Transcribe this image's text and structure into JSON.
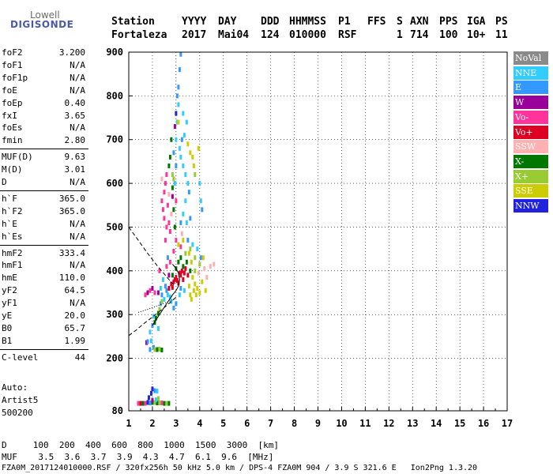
{
  "logo": {
    "line1": "Lowell",
    "line2": "DIGISONDE"
  },
  "header": {
    "labels": {
      "station": "Station",
      "yyyy": "YYYY",
      "day": "DAY",
      "ddd": "DDD",
      "hhmmss": "HHMMSS",
      "p1": "P1",
      "ffs": "FFS",
      "s": "S",
      "axn": "AXN",
      "pps": "PPS",
      "iga": "IGA",
      "ps": "PS"
    },
    "values": {
      "station": "Fortaleza",
      "yyyy": "2017",
      "day": "Mai04",
      "ddd": "124",
      "hhmmss": "010000",
      "p1": "RSF",
      "ffs": "",
      "s": "1",
      "axn": "714",
      "pps": "100",
      "iga": "10+",
      "ps": "11"
    }
  },
  "params": [
    [
      {
        "name": "foF2",
        "value": "3.200"
      },
      {
        "name": "foF1",
        "value": "N/A"
      },
      {
        "name": "foF1p",
        "value": "N/A"
      },
      {
        "name": "foE",
        "value": "N/A"
      },
      {
        "name": "foEp",
        "value": "0.40"
      },
      {
        "name": "fxI",
        "value": "3.65"
      },
      {
        "name": "foEs",
        "value": "N/A"
      },
      {
        "name": "fmin",
        "value": "2.80"
      }
    ],
    [
      {
        "name": "MUF(D)",
        "value": "9.63"
      },
      {
        "name": "M(D)",
        "value": "3.01"
      },
      {
        "name": "D",
        "value": "N/A"
      }
    ],
    [
      {
        "name": "h`F",
        "value": "365.0"
      },
      {
        "name": "h`F2",
        "value": "365.0"
      },
      {
        "name": "h`E",
        "value": "N/A"
      },
      {
        "name": "h`Es",
        "value": "N/A"
      }
    ],
    [
      {
        "name": "hmF2",
        "value": "333.4"
      },
      {
        "name": "hmF1",
        "value": "N/A"
      },
      {
        "name": "hmE",
        "value": "110.0"
      },
      {
        "name": "yF2",
        "value": "64.5"
      },
      {
        "name": "yF1",
        "value": "N/A"
      },
      {
        "name": "yE",
        "value": "20.0"
      },
      {
        "name": "B0",
        "value": "65.7"
      },
      {
        "name": "B1",
        "value": "1.99"
      }
    ],
    [
      {
        "name": "C-level",
        "value": "44"
      }
    ]
  ],
  "auto": {
    "line1": "Auto:",
    "line2": "Artist5",
    "line3": "500200"
  },
  "legend": [
    {
      "label": "NoVal",
      "color": "#8a8a8a"
    },
    {
      "label": "NNE",
      "color": "#33ccff"
    },
    {
      "label": "E",
      "color": "#3399ff"
    },
    {
      "label": "W",
      "color": "#990099"
    },
    {
      "label": "Vo-",
      "color": "#ff3399"
    },
    {
      "label": "Vo+",
      "color": "#dd0022"
    },
    {
      "label": "SSW",
      "color": "#ffb0b0"
    },
    {
      "label": "X-",
      "color": "#007700"
    },
    {
      "label": "X+",
      "color": "#99cc33"
    },
    {
      "label": "SSE",
      "color": "#cccc00"
    },
    {
      "label": "NNW",
      "color": "#2222dd"
    }
  ],
  "footer": {
    "d_row": "D     100  200  400  600  800  1000  1500  3000  [km]",
    "muf_row": "MUF    3.5  3.6  3.7  3.9  4.3  4.7  6.1  9.6  [MHz]",
    "info_row": "FZA0M_2017124010000.RSF / 320fx256h 50 kHz 5.0 km / DPS-4 FZA0M 904 / 3.9 S 321.6 E   Ion2Png 1.3.20"
  },
  "chart_data": {
    "type": "scatter",
    "xlim": [
      1,
      17
    ],
    "ylim": [
      80,
      900
    ],
    "x_ticks": [
      "1",
      "2",
      "3",
      "4",
      "5",
      "6",
      "7",
      "8",
      "9",
      "10",
      "11",
      "12",
      "13",
      "14",
      "15",
      "16",
      "17"
    ],
    "y_ticks": [
      "80",
      "200",
      "300",
      "400",
      "500",
      "600",
      "700",
      "800",
      "900"
    ],
    "grid": true,
    "legend_position": "right",
    "points": [
      {
        "x": 2.05,
        "y": 225,
        "c": "E"
      },
      {
        "x": 2.1,
        "y": 220,
        "c": "X+"
      },
      {
        "x": 2.2,
        "y": 220,
        "c": "X-"
      },
      {
        "x": 2.3,
        "y": 221,
        "c": "X+"
      },
      {
        "x": 2.4,
        "y": 219,
        "c": "X-"
      },
      {
        "x": 1.9,
        "y": 220,
        "c": "E"
      },
      {
        "x": 1.95,
        "y": 240,
        "c": "NNE"
      },
      {
        "x": 1.75,
        "y": 236,
        "c": "W"
      },
      {
        "x": 1.8,
        "y": 238,
        "c": "E"
      },
      {
        "x": 1.9,
        "y": 260,
        "c": "NNE"
      },
      {
        "x": 2.0,
        "y": 275,
        "c": "E"
      },
      {
        "x": 2.1,
        "y": 282,
        "c": "X-"
      },
      {
        "x": 2.15,
        "y": 292,
        "c": "X-"
      },
      {
        "x": 2.25,
        "y": 303,
        "c": "X-"
      },
      {
        "x": 2.3,
        "y": 312,
        "c": "X+"
      },
      {
        "x": 2.35,
        "y": 325,
        "c": "E"
      },
      {
        "x": 2.4,
        "y": 330,
        "c": "X+"
      },
      {
        "x": 2.25,
        "y": 268,
        "c": "NNE"
      },
      {
        "x": 2.05,
        "y": 296,
        "c": "NNE"
      },
      {
        "x": 1.95,
        "y": 120,
        "c": "NNW"
      },
      {
        "x": 2.0,
        "y": 130,
        "c": "NNW"
      },
      {
        "x": 2.1,
        "y": 126,
        "c": "E"
      },
      {
        "x": 2.2,
        "y": 125,
        "c": "NNE"
      },
      {
        "x": 1.4,
        "y": 97,
        "c": "Vo-"
      },
      {
        "x": 1.5,
        "y": 97,
        "c": "Vo+"
      },
      {
        "x": 1.6,
        "y": 97,
        "c": "X-"
      },
      {
        "x": 1.7,
        "y": 97,
        "c": "Vo-"
      },
      {
        "x": 1.8,
        "y": 99,
        "c": "NNW"
      },
      {
        "x": 1.9,
        "y": 98,
        "c": "E"
      },
      {
        "x": 2.0,
        "y": 99,
        "c": "X-"
      },
      {
        "x": 2.1,
        "y": 99,
        "c": "X+"
      },
      {
        "x": 2.2,
        "y": 98,
        "c": "X-"
      },
      {
        "x": 2.3,
        "y": 98,
        "c": "X+"
      },
      {
        "x": 2.4,
        "y": 98,
        "c": "Vo-"
      },
      {
        "x": 2.5,
        "y": 97,
        "c": "X-"
      },
      {
        "x": 2.6,
        "y": 97,
        "c": "X+"
      },
      {
        "x": 2.7,
        "y": 97,
        "c": "X-"
      },
      {
        "x": 2.0,
        "y": 104,
        "c": "W"
      },
      {
        "x": 2.15,
        "y": 105,
        "c": "NNE"
      },
      {
        "x": 1.85,
        "y": 110,
        "c": "NNW"
      },
      {
        "x": 2.25,
        "y": 108,
        "c": "X+"
      },
      {
        "x": 2.6,
        "y": 355,
        "c": "E"
      },
      {
        "x": 2.65,
        "y": 345,
        "c": "NNE"
      },
      {
        "x": 2.7,
        "y": 360,
        "c": "Vo+"
      },
      {
        "x": 2.75,
        "y": 340,
        "c": "NNE"
      },
      {
        "x": 2.8,
        "y": 370,
        "c": "Vo+"
      },
      {
        "x": 2.85,
        "y": 362,
        "c": "Vo+"
      },
      {
        "x": 2.9,
        "y": 375,
        "c": "Vo+"
      },
      {
        "x": 2.95,
        "y": 380,
        "c": "Vo+"
      },
      {
        "x": 3.0,
        "y": 385,
        "c": "Vo+"
      },
      {
        "x": 3.05,
        "y": 378,
        "c": "Vo+"
      },
      {
        "x": 3.1,
        "y": 372,
        "c": "Vo+"
      },
      {
        "x": 3.15,
        "y": 395,
        "c": "Vo+"
      },
      {
        "x": 3.2,
        "y": 390,
        "c": "Vo+"
      },
      {
        "x": 3.25,
        "y": 400,
        "c": "Vo+"
      },
      {
        "x": 3.3,
        "y": 380,
        "c": "Vo+"
      },
      {
        "x": 3.35,
        "y": 395,
        "c": "Vo+"
      },
      {
        "x": 3.4,
        "y": 405,
        "c": "Vo+"
      },
      {
        "x": 3.5,
        "y": 390,
        "c": "Vo+"
      },
      {
        "x": 2.85,
        "y": 390,
        "c": "X-"
      },
      {
        "x": 3.0,
        "y": 405,
        "c": "X-"
      },
      {
        "x": 3.1,
        "y": 420,
        "c": "X-"
      },
      {
        "x": 3.2,
        "y": 430,
        "c": "X-"
      },
      {
        "x": 3.3,
        "y": 410,
        "c": "X-"
      },
      {
        "x": 3.45,
        "y": 420,
        "c": "X-"
      },
      {
        "x": 3.6,
        "y": 400,
        "c": "X-"
      },
      {
        "x": 3.7,
        "y": 385,
        "c": "SSE"
      },
      {
        "x": 3.8,
        "y": 370,
        "c": "SSE"
      },
      {
        "x": 3.9,
        "y": 360,
        "c": "SSE"
      },
      {
        "x": 4.0,
        "y": 350,
        "c": "SSE"
      },
      {
        "x": 3.75,
        "y": 355,
        "c": "SSE"
      },
      {
        "x": 3.6,
        "y": 345,
        "c": "SSE"
      },
      {
        "x": 4.1,
        "y": 375,
        "c": "SSE"
      },
      {
        "x": 3.95,
        "y": 395,
        "c": "SSW"
      },
      {
        "x": 4.2,
        "y": 405,
        "c": "SSW"
      },
      {
        "x": 4.3,
        "y": 385,
        "c": "SSW"
      },
      {
        "x": 4.45,
        "y": 410,
        "c": "SSW"
      },
      {
        "x": 4.6,
        "y": 415,
        "c": "SSW"
      },
      {
        "x": 3.4,
        "y": 440,
        "c": "X+"
      },
      {
        "x": 3.6,
        "y": 450,
        "c": "X+"
      },
      {
        "x": 3.8,
        "y": 430,
        "c": "X+"
      },
      {
        "x": 3.2,
        "y": 455,
        "c": "Vo-"
      },
      {
        "x": 3.0,
        "y": 470,
        "c": "Vo-"
      },
      {
        "x": 2.9,
        "y": 445,
        "c": "Vo-"
      },
      {
        "x": 2.75,
        "y": 420,
        "c": "Vo-"
      },
      {
        "x": 3.25,
        "y": 485,
        "c": "SSW"
      },
      {
        "x": 3.5,
        "y": 470,
        "c": "E"
      },
      {
        "x": 3.7,
        "y": 460,
        "c": "NNE"
      },
      {
        "x": 3.9,
        "y": 450,
        "c": "NNE"
      },
      {
        "x": 4.05,
        "y": 430,
        "c": "E"
      },
      {
        "x": 3.15,
        "y": 345,
        "c": "NNE"
      },
      {
        "x": 3.35,
        "y": 355,
        "c": "NNE"
      },
      {
        "x": 2.5,
        "y": 335,
        "c": "NNE"
      },
      {
        "x": 2.4,
        "y": 345,
        "c": "E"
      },
      {
        "x": 2.55,
        "y": 365,
        "c": "E"
      },
      {
        "x": 2.45,
        "y": 380,
        "c": "NNE"
      },
      {
        "x": 2.25,
        "y": 350,
        "c": "W"
      },
      {
        "x": 2.0,
        "y": 360,
        "c": "W"
      },
      {
        "x": 1.9,
        "y": 355,
        "c": "Vo-"
      },
      {
        "x": 2.3,
        "y": 400,
        "c": "Vo-"
      },
      {
        "x": 2.6,
        "y": 410,
        "c": "Vo-"
      },
      {
        "x": 2.65,
        "y": 430,
        "c": "E"
      },
      {
        "x": 2.7,
        "y": 390,
        "c": "W"
      },
      {
        "x": 3.8,
        "y": 400,
        "c": "X+"
      },
      {
        "x": 4.0,
        "y": 415,
        "c": "X+"
      },
      {
        "x": 3.55,
        "y": 365,
        "c": "SSE"
      },
      {
        "x": 3.85,
        "y": 345,
        "c": "SSE"
      },
      {
        "x": 4.25,
        "y": 355,
        "c": "SSE"
      },
      {
        "x": 3.65,
        "y": 335,
        "c": "SSE"
      },
      {
        "x": 2.5,
        "y": 520,
        "c": "Vo-"
      },
      {
        "x": 2.45,
        "y": 540,
        "c": "Vo-"
      },
      {
        "x": 2.4,
        "y": 560,
        "c": "Vo-"
      },
      {
        "x": 2.5,
        "y": 580,
        "c": "Vo-"
      },
      {
        "x": 2.55,
        "y": 600,
        "c": "Vo-"
      },
      {
        "x": 2.6,
        "y": 620,
        "c": "Vo-"
      },
      {
        "x": 2.65,
        "y": 550,
        "c": "Vo-"
      },
      {
        "x": 2.7,
        "y": 510,
        "c": "Vo-"
      },
      {
        "x": 2.75,
        "y": 490,
        "c": "Vo-"
      },
      {
        "x": 2.6,
        "y": 500,
        "c": "Vo-"
      },
      {
        "x": 2.55,
        "y": 470,
        "c": "Vo-"
      },
      {
        "x": 2.7,
        "y": 575,
        "c": "SSW"
      },
      {
        "x": 2.8,
        "y": 530,
        "c": "SSW"
      },
      {
        "x": 2.4,
        "y": 610,
        "c": "SSW"
      },
      {
        "x": 2.7,
        "y": 640,
        "c": "X-"
      },
      {
        "x": 2.75,
        "y": 660,
        "c": "X-"
      },
      {
        "x": 2.8,
        "y": 700,
        "c": "X-"
      },
      {
        "x": 2.85,
        "y": 590,
        "c": "X-"
      },
      {
        "x": 2.9,
        "y": 540,
        "c": "X-"
      },
      {
        "x": 2.95,
        "y": 500,
        "c": "X-"
      },
      {
        "x": 2.85,
        "y": 620,
        "c": "X+"
      },
      {
        "x": 2.9,
        "y": 610,
        "c": "X+"
      },
      {
        "x": 3.0,
        "y": 700,
        "c": "NNE"
      },
      {
        "x": 3.05,
        "y": 740,
        "c": "NNE"
      },
      {
        "x": 3.1,
        "y": 780,
        "c": "NNE"
      },
      {
        "x": 3.1,
        "y": 820,
        "c": "E"
      },
      {
        "x": 3.15,
        "y": 860,
        "c": "E"
      },
      {
        "x": 3.2,
        "y": 895,
        "c": "E"
      },
      {
        "x": 3.15,
        "y": 680,
        "c": "NNE"
      },
      {
        "x": 3.2,
        "y": 660,
        "c": "NNE"
      },
      {
        "x": 3.3,
        "y": 640,
        "c": "NNE"
      },
      {
        "x": 3.4,
        "y": 620,
        "c": "NNE"
      },
      {
        "x": 3.5,
        "y": 600,
        "c": "NNE"
      },
      {
        "x": 3.55,
        "y": 580,
        "c": "E"
      },
      {
        "x": 3.25,
        "y": 700,
        "c": "E"
      },
      {
        "x": 3.35,
        "y": 710,
        "c": "NNE"
      },
      {
        "x": 3.5,
        "y": 690,
        "c": "SSE"
      },
      {
        "x": 3.6,
        "y": 670,
        "c": "SSE"
      },
      {
        "x": 3.7,
        "y": 660,
        "c": "SSE"
      },
      {
        "x": 3.75,
        "y": 640,
        "c": "SSE"
      },
      {
        "x": 3.8,
        "y": 620,
        "c": "X+"
      },
      {
        "x": 3.95,
        "y": 680,
        "c": "SSE"
      },
      {
        "x": 4.0,
        "y": 600,
        "c": "NNE"
      },
      {
        "x": 4.05,
        "y": 560,
        "c": "NNE"
      },
      {
        "x": 4.1,
        "y": 540,
        "c": "E"
      },
      {
        "x": 3.4,
        "y": 560,
        "c": "NNE"
      },
      {
        "x": 3.3,
        "y": 530,
        "c": "NNE"
      },
      {
        "x": 3.2,
        "y": 510,
        "c": "E"
      },
      {
        "x": 3.45,
        "y": 510,
        "c": "NNE"
      },
      {
        "x": 3.6,
        "y": 520,
        "c": "E"
      },
      {
        "x": 3.0,
        "y": 760,
        "c": "NNW"
      },
      {
        "x": 2.95,
        "y": 730,
        "c": "W"
      },
      {
        "x": 3.05,
        "y": 800,
        "c": "E"
      },
      {
        "x": 3.1,
        "y": 740,
        "c": "SSE"
      },
      {
        "x": 3.3,
        "y": 760,
        "c": "NNE"
      },
      {
        "x": 3.45,
        "y": 740,
        "c": "NNE"
      },
      {
        "x": 3.0,
        "y": 640,
        "c": "E"
      },
      {
        "x": 2.95,
        "y": 600,
        "c": "NNE"
      },
      {
        "x": 2.9,
        "y": 670,
        "c": "E"
      },
      {
        "x": 3.0,
        "y": 560,
        "c": "Vo-"
      },
      {
        "x": 2.85,
        "y": 570,
        "c": "W"
      },
      {
        "x": 3.1,
        "y": 460,
        "c": "SSE"
      },
      {
        "x": 3.3,
        "y": 470,
        "c": "SSE"
      },
      {
        "x": 3.55,
        "y": 440,
        "c": "SSE"
      },
      {
        "x": 3.65,
        "y": 420,
        "c": "SSE"
      },
      {
        "x": 4.15,
        "y": 430,
        "c": "SSE"
      },
      {
        "x": 2.1,
        "y": 350,
        "c": "Vo-"
      },
      {
        "x": 1.8,
        "y": 350,
        "c": "W"
      },
      {
        "x": 1.7,
        "y": 345,
        "c": "Vo-"
      },
      {
        "x": 2.35,
        "y": 360,
        "c": "NNE"
      },
      {
        "x": 2.9,
        "y": 315,
        "c": "E"
      },
      {
        "x": 3.0,
        "y": 325,
        "c": "E"
      },
      {
        "x": 2.8,
        "y": 330,
        "c": "NNE"
      },
      {
        "x": 3.2,
        "y": 360,
        "c": "E"
      }
    ],
    "lines": [
      {
        "style": "solid",
        "x": [
          2.0,
          2.3,
          2.6,
          2.85,
          3.0,
          3.1,
          3.15,
          3.1,
          3.0,
          2.9,
          2.85
        ],
        "y": [
          275,
          300,
          325,
          345,
          355,
          365,
          380,
          395,
          405,
          412,
          415
        ]
      },
      {
        "style": "dashed",
        "x": [
          1.0,
          1.3,
          1.6,
          1.9,
          2.2,
          2.5,
          2.8,
          3.0
        ],
        "y": [
          252,
          264,
          278,
          290,
          303,
          316,
          330,
          340
        ]
      },
      {
        "style": "dashed",
        "x": [
          1.0,
          1.4,
          1.8,
          2.2,
          2.5,
          2.7,
          2.9
        ],
        "y": [
          500,
          470,
          440,
          412,
          393,
          380,
          368
        ]
      },
      {
        "style": "dotted",
        "x": [
          1.4,
          1.8,
          2.2,
          2.6,
          3.0
        ],
        "y": [
          305,
          312,
          320,
          328,
          337
        ]
      }
    ]
  }
}
